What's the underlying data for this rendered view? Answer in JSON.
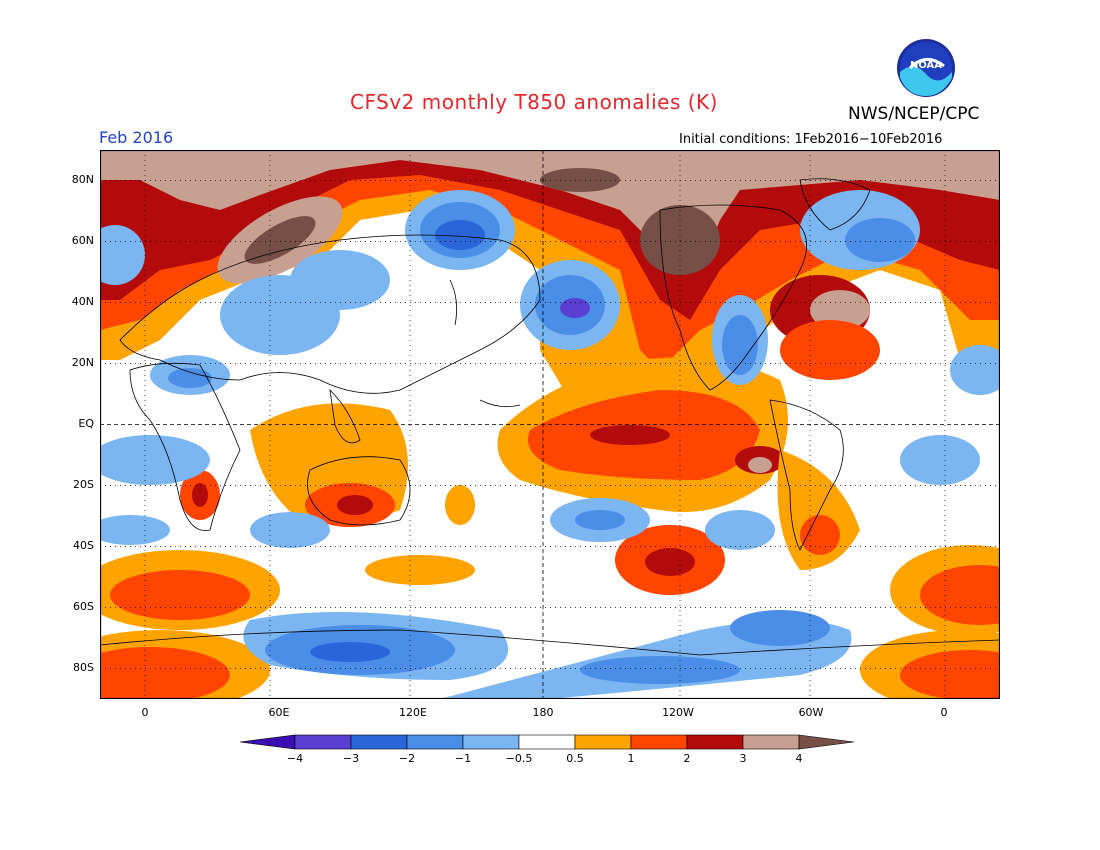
{
  "title": "CFSv2 monthly T850 anomalies (K)",
  "agency": "NWS/NCEP/CPC",
  "logo_text": "NOAA",
  "month": "Feb 2016",
  "initial_conditions": "Initial conditions: 1Feb2016−10Feb2016",
  "lat_labels": [
    "80N",
    "60N",
    "40N",
    "20N",
    "EQ",
    "20S",
    "40S",
    "60S",
    "80S"
  ],
  "lon_labels": [
    "0",
    "60E",
    "120E",
    "180",
    "120W",
    "60W",
    "0"
  ],
  "colorbar": {
    "labels": [
      "−4",
      "−3",
      "−2",
      "−1",
      "−0.5",
      "0.5",
      "1",
      "2",
      "3",
      "4"
    ],
    "colors": [
      "#3a0fb0",
      "#5b3fd2",
      "#2a66d8",
      "#4a8ee8",
      "#7cb6f2",
      "#ffffff",
      "#ffa300",
      "#ff4500",
      "#b30b0b",
      "#c8a092",
      "#765046"
    ]
  },
  "colors": {
    "title": "#e8262b",
    "month": "#2244cc",
    "ocean_land_background": "#ffffff"
  }
}
